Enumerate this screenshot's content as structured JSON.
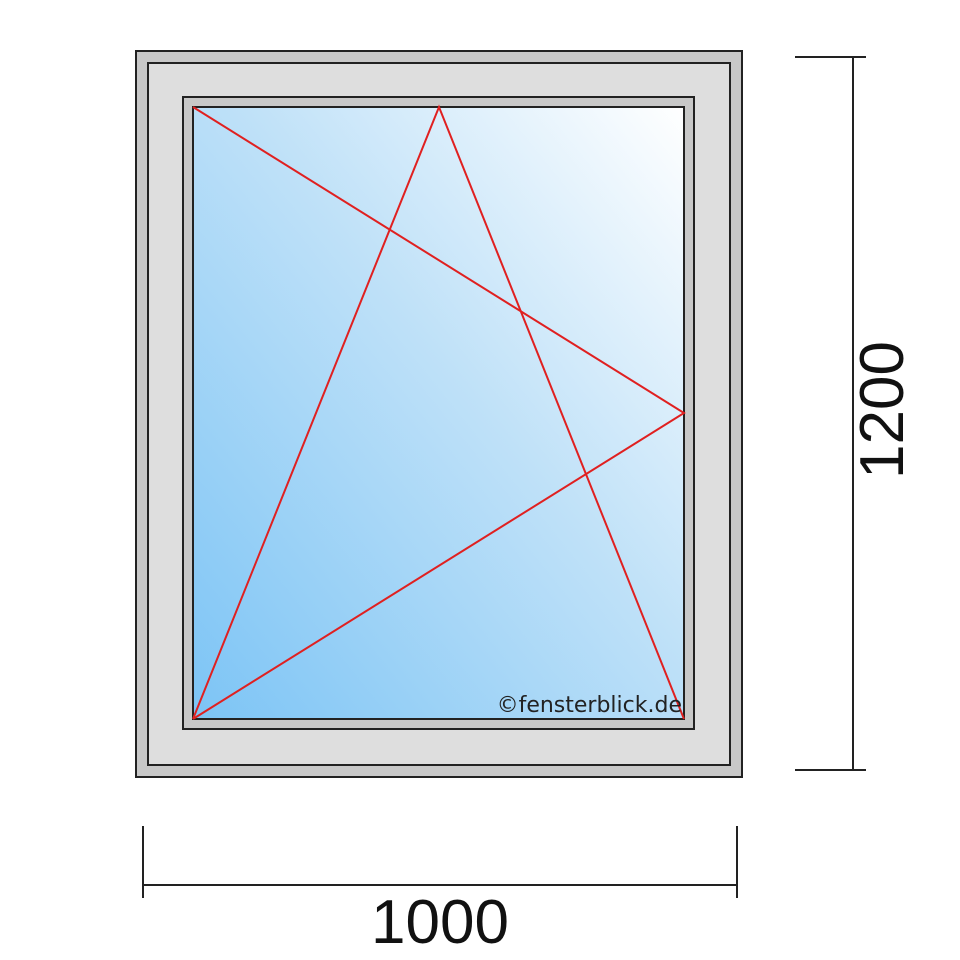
{
  "window": {
    "type": "tilt-turn, left hinged",
    "glass_gradient": [
      "#7cc4f5",
      "#ffffff"
    ],
    "frame_color": "#dcdcdc",
    "opening_line_color": "#e02020"
  },
  "dimensions": {
    "width": "1000",
    "height": "1200"
  },
  "watermark": "©fensterblick.de"
}
